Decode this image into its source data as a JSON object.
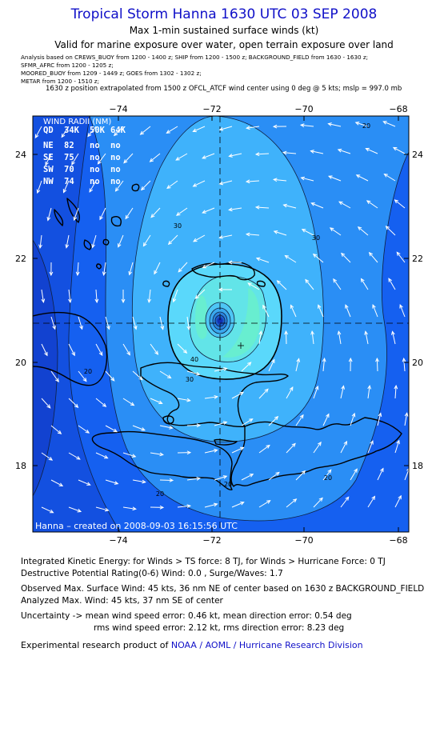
{
  "header": {
    "title": "Tropical Storm Hanna 1630 UTC 03 SEP 2008",
    "subtitle": "Max 1-min sustained surface winds (kt)",
    "validity": "Valid for marine exposure over water, open terrain exposure over land"
  },
  "analysis_sources": [
    "Analysis based on   CREWS_BUOY from 1200 - 1400 z;  SHIP from 1200 - 1500 z;  BACKGROUND_FIELD from 1630 - 1630 z;",
    "SFMR_AFRC from 1200 - 1205 z;",
    "MOORED_BUOY from 1209 - 1449 z;  GOES from 1302 - 1302 z;",
    "METAR from 1200 - 1510 z;"
  ],
  "position_note": "1630 z position extrapolated from 1500 z OFCL_ATCF wind center using 0 deg @ 5 kts; mslp = 997.0 mb",
  "map": {
    "lon_ticks": [
      "−74",
      "−72",
      "−70",
      "−68"
    ],
    "lat_ticks": [
      "24",
      "22",
      "20",
      "18"
    ],
    "lon_range": [
      -75.8,
      -67.6
    ],
    "lat_range": [
      16.7,
      24.7
    ],
    "center": {
      "lon": -71.85,
      "lat": 20.75
    },
    "contour_labels": [
      "20",
      "20",
      "20",
      "20",
      "20",
      "30",
      "30",
      "30",
      "40"
    ],
    "footer_text": "Hanna  –  created on 2008-09-03 16:15:56 UTC",
    "colors": {
      "outer": "#1560f0",
      "mid": "#2a8ef5",
      "inner": "#3fb2fb",
      "core": "#5ad8fb",
      "peak": "#68eed0",
      "eye": "#1230b0"
    }
  },
  "wind_radii": {
    "title": "WIND RADII (NM)",
    "header": [
      "QD",
      "34K",
      "50K",
      "64K"
    ],
    "rows": [
      [
        "NE",
        "82",
        "no",
        "no"
      ],
      [
        "SE",
        "75",
        "no",
        "no"
      ],
      [
        "SW",
        "70",
        "no",
        "no"
      ],
      [
        "NW",
        "74",
        "no",
        "no"
      ]
    ]
  },
  "stats": {
    "ike": "Integrated Kinetic Energy:  for Winds > TS force: 8 TJ,  for Winds > Hurricane Force: 0 TJ",
    "dpr": "Destructive Potential Rating(0-6)   Wind: 0.0 , Surge/Waves: 1.7",
    "observed": "Observed Max. Surface Wind: 45 kts, 36 nm NE of center based on 1630 z BACKGROUND_FIELD",
    "analyzed": "Analyzed Max. Wind: 45 kts, 37 nm SE of center",
    "uncertainty1": "Uncertainty -> mean wind speed error: 0.46 kt,   mean direction error: 0.54 deg",
    "uncertainty2": "rms wind speed error: 2.12 kt,   rms direction error: 8.23 deg",
    "credit_prefix": "Experimental research product of ",
    "credit_org": "NOAA / AOML / Hurricane Research Division"
  }
}
